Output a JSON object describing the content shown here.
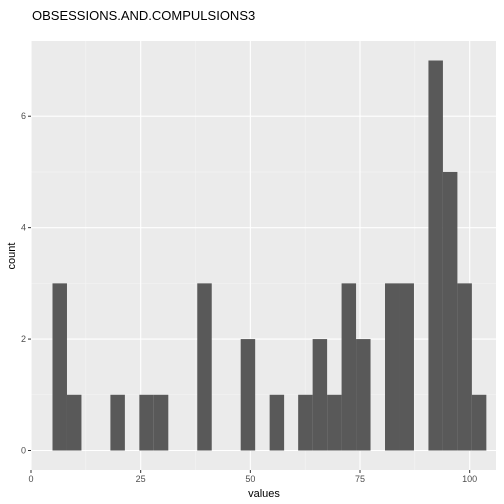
{
  "chart_data": {
    "type": "bar",
    "title": "OBSESSIONS.AND.COMPULSIONS3",
    "xlabel": "values",
    "ylabel": "count",
    "xlim": [
      0,
      106
    ],
    "ylim": [
      -0.35,
      7.35
    ],
    "x_ticks": [
      0,
      25,
      50,
      75,
      100
    ],
    "x_tick_labels": [
      "0",
      "25",
      "50",
      "75",
      "100"
    ],
    "y_ticks": [
      0,
      2,
      4,
      6
    ],
    "y_tick_labels": [
      "0",
      "2",
      "4",
      "6"
    ],
    "grid": true,
    "bin_width": 3.3,
    "bins": [
      {
        "start": 4.9,
        "count": 3
      },
      {
        "start": 8.2,
        "count": 1
      },
      {
        "start": 18.1,
        "count": 1
      },
      {
        "start": 24.7,
        "count": 1
      },
      {
        "start": 28.0,
        "count": 1
      },
      {
        "start": 37.9,
        "count": 3
      },
      {
        "start": 47.8,
        "count": 2
      },
      {
        "start": 54.4,
        "count": 1
      },
      {
        "start": 60.9,
        "count": 1
      },
      {
        "start": 64.2,
        "count": 2
      },
      {
        "start": 67.5,
        "count": 1
      },
      {
        "start": 70.8,
        "count": 3
      },
      {
        "start": 74.1,
        "count": 2
      },
      {
        "start": 80.7,
        "count": 3
      },
      {
        "start": 84.0,
        "count": 3
      },
      {
        "start": 90.6,
        "count": 7
      },
      {
        "start": 93.9,
        "count": 5
      },
      {
        "start": 97.2,
        "count": 3
      },
      {
        "start": 100.5,
        "count": 1
      }
    ],
    "colors": {
      "panel": "#ebebeb",
      "grid_major": "#ffffff",
      "grid_minor": "#f5f5f5",
      "bar": "#595959",
      "tick": "#333333"
    }
  }
}
